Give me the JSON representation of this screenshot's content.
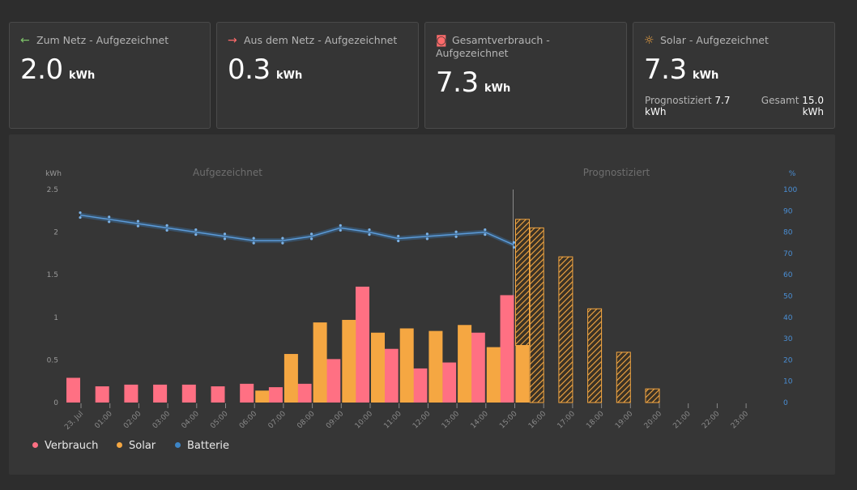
{
  "cards": [
    {
      "icon": "arrow-left-icon",
      "glyph": "←",
      "glyph_color": "#7ec36a",
      "title": "Zum Netz - Aufgezeichnet",
      "value": "2.0",
      "unit": "kWh"
    },
    {
      "icon": "arrow-right-icon",
      "glyph": "→",
      "glyph_color": "#ff6b6b",
      "title": "Aus dem Netz - Aufgezeichnet",
      "value": "0.3",
      "unit": "kWh"
    },
    {
      "icon": "outlet-icon",
      "glyph": "◙",
      "glyph_color": "#ff6b6b",
      "title": "Gesamtverbrauch - Aufgezeichnet",
      "value": "7.3",
      "unit": "kWh"
    },
    {
      "icon": "sun-icon",
      "glyph": "☼",
      "glyph_color": "#f5a742",
      "title": "Solar - Aufgezeichnet",
      "value": "7.3",
      "unit": "kWh"
    }
  ],
  "solar_sub": {
    "forecast_label": "Prognostiziert",
    "forecast_value": "7.7",
    "forecast_unit": "kWh",
    "total_label": "Gesamt",
    "total_value": "15.0",
    "total_unit": "kWh"
  },
  "colors": {
    "consumption": "#ff7083",
    "solar": "#f5a742",
    "battery": "#3d85c6",
    "axis_right": "#4a8fd6"
  },
  "chart_data": {
    "type": "bar",
    "sections": {
      "recorded": "Aufgezeichnet",
      "forecast": "Prognostiziert"
    },
    "ylabel_left": "kWh",
    "ylabel_right": "%",
    "ylim_left": [
      0,
      2.5
    ],
    "ylim_right": [
      0,
      100
    ],
    "yticks_left": [
      "0",
      "0.5",
      "1",
      "1.5",
      "2",
      "2.5"
    ],
    "yticks_right": [
      "0",
      "10",
      "20",
      "30",
      "40",
      "50",
      "60",
      "70",
      "80",
      "90",
      "100"
    ],
    "categories": [
      "23. Jul",
      "01:00",
      "02:00",
      "03:00",
      "04:00",
      "05:00",
      "06:00",
      "07:00",
      "08:00",
      "09:00",
      "10:00",
      "11:00",
      "12:00",
      "13:00",
      "14:00",
      "15:00",
      "16:00",
      "17:00",
      "18:00",
      "19:00",
      "20:00",
      "21:00",
      "22:00",
      "23:00"
    ],
    "series": [
      {
        "name": "Verbrauch",
        "values": [
          0.29,
          0.19,
          0.21,
          0.21,
          0.21,
          0.19,
          0.22,
          0.18,
          0.22,
          0.51,
          1.36,
          0.63,
          0.4,
          0.47,
          0.82,
          1.26,
          null,
          null,
          null,
          null,
          null,
          null,
          null,
          null
        ]
      },
      {
        "name": "Solar",
        "values": [
          0,
          0,
          0,
          0,
          0,
          0,
          0.14,
          0.57,
          0.94,
          0.97,
          0.82,
          0.87,
          0.84,
          0.91,
          0.65,
          0.67,
          null,
          null,
          null,
          null,
          null,
          null,
          null,
          null
        ]
      },
      {
        "name": "Batterie",
        "values": [
          88,
          86,
          84,
          82,
          80,
          78,
          76,
          76,
          78,
          82,
          80,
          77,
          78,
          79,
          80,
          74,
          null,
          null,
          null,
          null,
          null,
          null,
          null,
          null
        ]
      }
    ],
    "forecast_solar": [
      null,
      null,
      null,
      null,
      null,
      null,
      null,
      null,
      null,
      null,
      null,
      null,
      null,
      null,
      null,
      2.15,
      2.05,
      1.71,
      1.1,
      0.59,
      0.16,
      0,
      0,
      0
    ],
    "legend": [
      "Verbrauch",
      "Solar",
      "Batterie"
    ]
  }
}
